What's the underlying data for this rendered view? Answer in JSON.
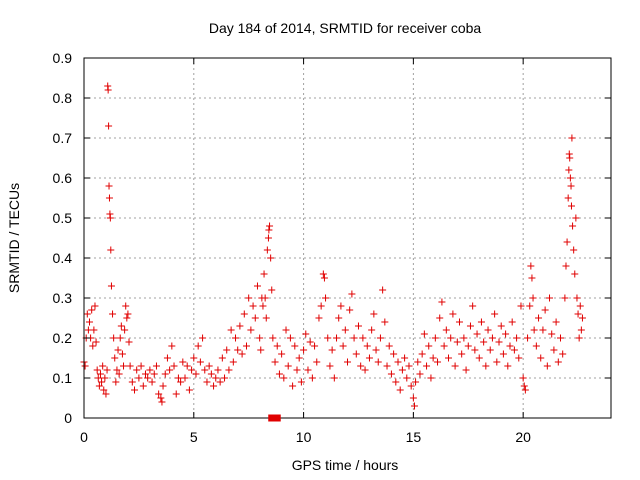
{
  "chart_data": {
    "type": "scatter",
    "title": "Day 184 of 2014, SRMTID for receiver coba",
    "xlabel": "GPS time / hours",
    "ylabel": "SRMTID / TECUs",
    "xlim": [
      0,
      24
    ],
    "ylim": [
      0,
      0.9
    ],
    "x_ticks": [
      0,
      5,
      10,
      15,
      20
    ],
    "x_tick_labels": [
      "0",
      "5",
      "10",
      "15",
      "20"
    ],
    "y_ticks": [
      0,
      0.1,
      0.2,
      0.3,
      0.4,
      0.5,
      0.6,
      0.7,
      0.8,
      0.9
    ],
    "y_tick_labels": [
      "0",
      "0.1",
      "0.2",
      "0.3",
      "0.4",
      "0.5",
      "0.6",
      "0.7",
      "0.8",
      "0.9"
    ],
    "grid": true,
    "marker": "plus",
    "color": "#e00000",
    "data_gap_marker": {
      "x": [
        8.55,
        8.8
      ],
      "y": 0
    },
    "series": [
      {
        "name": "SRMTID",
        "points": [
          [
            0.0,
            0.14
          ],
          [
            0.05,
            0.13
          ],
          [
            0.1,
            0.2
          ],
          [
            0.15,
            0.26
          ],
          [
            0.2,
            0.22
          ],
          [
            0.25,
            0.24
          ],
          [
            0.3,
            0.2
          ],
          [
            0.35,
            0.27
          ],
          [
            0.4,
            0.18
          ],
          [
            0.45,
            0.22
          ],
          [
            0.5,
            0.28
          ],
          [
            0.55,
            0.19
          ],
          [
            0.6,
            0.12
          ],
          [
            0.65,
            0.1
          ],
          [
            0.7,
            0.08
          ],
          [
            0.75,
            0.11
          ],
          [
            0.8,
            0.09
          ],
          [
            0.85,
            0.13
          ],
          [
            0.9,
            0.07
          ],
          [
            0.95,
            0.1
          ],
          [
            1.0,
            0.06
          ],
          [
            1.05,
            0.12
          ],
          [
            1.08,
            0.83
          ],
          [
            1.1,
            0.82
          ],
          [
            1.12,
            0.73
          ],
          [
            1.14,
            0.58
          ],
          [
            1.16,
            0.55
          ],
          [
            1.18,
            0.51
          ],
          [
            1.2,
            0.5
          ],
          [
            1.22,
            0.42
          ],
          [
            1.25,
            0.33
          ],
          [
            1.3,
            0.26
          ],
          [
            1.35,
            0.2
          ],
          [
            1.4,
            0.15
          ],
          [
            1.45,
            0.09
          ],
          [
            1.5,
            0.12
          ],
          [
            1.55,
            0.17
          ],
          [
            1.6,
            0.11
          ],
          [
            1.65,
            0.2
          ],
          [
            1.7,
            0.23
          ],
          [
            1.75,
            0.16
          ],
          [
            1.8,
            0.13
          ],
          [
            1.85,
            0.22
          ],
          [
            1.9,
            0.28
          ],
          [
            1.95,
            0.25
          ],
          [
            2.0,
            0.26
          ],
          [
            2.05,
            0.19
          ],
          [
            2.1,
            0.13
          ],
          [
            2.2,
            0.09
          ],
          [
            2.3,
            0.07
          ],
          [
            2.4,
            0.12
          ],
          [
            2.5,
            0.1
          ],
          [
            2.6,
            0.13
          ],
          [
            2.7,
            0.08
          ],
          [
            2.8,
            0.11
          ],
          [
            2.9,
            0.1
          ],
          [
            3.0,
            0.12
          ],
          [
            3.1,
            0.09
          ],
          [
            3.2,
            0.11
          ],
          [
            3.3,
            0.13
          ],
          [
            3.4,
            0.06
          ],
          [
            3.5,
            0.05
          ],
          [
            3.55,
            0.04
          ],
          [
            3.6,
            0.08
          ],
          [
            3.7,
            0.11
          ],
          [
            3.8,
            0.15
          ],
          [
            3.9,
            0.12
          ],
          [
            4.0,
            0.18
          ],
          [
            4.1,
            0.13
          ],
          [
            4.2,
            0.06
          ],
          [
            4.3,
            0.1
          ],
          [
            4.4,
            0.09
          ],
          [
            4.5,
            0.14
          ],
          [
            4.6,
            0.1
          ],
          [
            4.7,
            0.13
          ],
          [
            4.8,
            0.07
          ],
          [
            4.9,
            0.12
          ],
          [
            5.0,
            0.15
          ],
          [
            5.1,
            0.11
          ],
          [
            5.2,
            0.18
          ],
          [
            5.3,
            0.14
          ],
          [
            5.4,
            0.2
          ],
          [
            5.5,
            0.12
          ],
          [
            5.6,
            0.09
          ],
          [
            5.7,
            0.13
          ],
          [
            5.8,
            0.11
          ],
          [
            5.9,
            0.08
          ],
          [
            6.0,
            0.1
          ],
          [
            6.1,
            0.12
          ],
          [
            6.2,
            0.09
          ],
          [
            6.3,
            0.15
          ],
          [
            6.4,
            0.1
          ],
          [
            6.5,
            0.17
          ],
          [
            6.6,
            0.12
          ],
          [
            6.7,
            0.22
          ],
          [
            6.8,
            0.14
          ],
          [
            6.9,
            0.2
          ],
          [
            7.0,
            0.17
          ],
          [
            7.1,
            0.23
          ],
          [
            7.2,
            0.16
          ],
          [
            7.3,
            0.26
          ],
          [
            7.4,
            0.18
          ],
          [
            7.5,
            0.3
          ],
          [
            7.6,
            0.22
          ],
          [
            7.7,
            0.28
          ],
          [
            7.8,
            0.25
          ],
          [
            7.9,
            0.33
          ],
          [
            8.0,
            0.2
          ],
          [
            8.05,
            0.17
          ],
          [
            8.1,
            0.3
          ],
          [
            8.15,
            0.28
          ],
          [
            8.2,
            0.36
          ],
          [
            8.25,
            0.3
          ],
          [
            8.3,
            0.25
          ],
          [
            8.35,
            0.42
          ],
          [
            8.4,
            0.45
          ],
          [
            8.42,
            0.47
          ],
          [
            8.45,
            0.48
          ],
          [
            8.5,
            0.4
          ],
          [
            8.55,
            0.32
          ],
          [
            8.6,
            0.2
          ],
          [
            8.7,
            0.14
          ],
          [
            8.8,
            0.18
          ],
          [
            8.9,
            0.11
          ],
          [
            9.0,
            0.16
          ],
          [
            9.1,
            0.1
          ],
          [
            9.2,
            0.22
          ],
          [
            9.3,
            0.13
          ],
          [
            9.4,
            0.2
          ],
          [
            9.5,
            0.08
          ],
          [
            9.6,
            0.18
          ],
          [
            9.7,
            0.12
          ],
          [
            9.8,
            0.15
          ],
          [
            9.9,
            0.09
          ],
          [
            10.0,
            0.17
          ],
          [
            10.1,
            0.21
          ],
          [
            10.2,
            0.12
          ],
          [
            10.3,
            0.19
          ],
          [
            10.4,
            0.1
          ],
          [
            10.5,
            0.18
          ],
          [
            10.6,
            0.14
          ],
          [
            10.7,
            0.25
          ],
          [
            10.8,
            0.28
          ],
          [
            10.9,
            0.36
          ],
          [
            10.95,
            0.35
          ],
          [
            11.0,
            0.3
          ],
          [
            11.1,
            0.2
          ],
          [
            11.2,
            0.13
          ],
          [
            11.3,
            0.17
          ],
          [
            11.4,
            0.1
          ],
          [
            11.5,
            0.2
          ],
          [
            11.6,
            0.25
          ],
          [
            11.7,
            0.28
          ],
          [
            11.8,
            0.18
          ],
          [
            11.9,
            0.22
          ],
          [
            12.0,
            0.14
          ],
          [
            12.1,
            0.27
          ],
          [
            12.2,
            0.31
          ],
          [
            12.3,
            0.2
          ],
          [
            12.4,
            0.16
          ],
          [
            12.5,
            0.23
          ],
          [
            12.6,
            0.13
          ],
          [
            12.7,
            0.2
          ],
          [
            12.8,
            0.12
          ],
          [
            12.9,
            0.18
          ],
          [
            13.0,
            0.15
          ],
          [
            13.1,
            0.22
          ],
          [
            13.2,
            0.26
          ],
          [
            13.3,
            0.17
          ],
          [
            13.4,
            0.14
          ],
          [
            13.5,
            0.2
          ],
          [
            13.6,
            0.32
          ],
          [
            13.7,
            0.24
          ],
          [
            13.8,
            0.13
          ],
          [
            13.9,
            0.18
          ],
          [
            14.0,
            0.11
          ],
          [
            14.1,
            0.16
          ],
          [
            14.2,
            0.09
          ],
          [
            14.3,
            0.14
          ],
          [
            14.4,
            0.07
          ],
          [
            14.5,
            0.12
          ],
          [
            14.6,
            0.15
          ],
          [
            14.7,
            0.1
          ],
          [
            14.8,
            0.13
          ],
          [
            14.9,
            0.08
          ],
          [
            15.0,
            0.05
          ],
          [
            15.05,
            0.03
          ],
          [
            15.1,
            0.09
          ],
          [
            15.2,
            0.14
          ],
          [
            15.3,
            0.11
          ],
          [
            15.4,
            0.16
          ],
          [
            15.5,
            0.21
          ],
          [
            15.6,
            0.13
          ],
          [
            15.7,
            0.18
          ],
          [
            15.8,
            0.1
          ],
          [
            15.9,
            0.15
          ],
          [
            16.0,
            0.2
          ],
          [
            16.1,
            0.14
          ],
          [
            16.2,
            0.25
          ],
          [
            16.3,
            0.29
          ],
          [
            16.4,
            0.18
          ],
          [
            16.5,
            0.22
          ],
          [
            16.6,
            0.15
          ],
          [
            16.7,
            0.2
          ],
          [
            16.8,
            0.26
          ],
          [
            16.9,
            0.13
          ],
          [
            17.0,
            0.19
          ],
          [
            17.1,
            0.24
          ],
          [
            17.2,
            0.16
          ],
          [
            17.3,
            0.2
          ],
          [
            17.4,
            0.12
          ],
          [
            17.5,
            0.18
          ],
          [
            17.6,
            0.23
          ],
          [
            17.7,
            0.28
          ],
          [
            17.8,
            0.17
          ],
          [
            17.9,
            0.21
          ],
          [
            18.0,
            0.15
          ],
          [
            18.1,
            0.24
          ],
          [
            18.2,
            0.19
          ],
          [
            18.3,
            0.13
          ],
          [
            18.4,
            0.22
          ],
          [
            18.5,
            0.17
          ],
          [
            18.6,
            0.2
          ],
          [
            18.7,
            0.26
          ],
          [
            18.8,
            0.14
          ],
          [
            18.9,
            0.19
          ],
          [
            19.0,
            0.23
          ],
          [
            19.1,
            0.16
          ],
          [
            19.2,
            0.21
          ],
          [
            19.3,
            0.13
          ],
          [
            19.4,
            0.18
          ],
          [
            19.5,
            0.24
          ],
          [
            19.6,
            0.17
          ],
          [
            19.7,
            0.2
          ],
          [
            19.8,
            0.15
          ],
          [
            19.9,
            0.28
          ],
          [
            20.0,
            0.1
          ],
          [
            20.05,
            0.08
          ],
          [
            20.1,
            0.07
          ],
          [
            20.2,
            0.2
          ],
          [
            20.3,
            0.28
          ],
          [
            20.35,
            0.38
          ],
          [
            20.4,
            0.35
          ],
          [
            20.45,
            0.3
          ],
          [
            20.5,
            0.22
          ],
          [
            20.6,
            0.18
          ],
          [
            20.7,
            0.25
          ],
          [
            20.8,
            0.15
          ],
          [
            20.9,
            0.22
          ],
          [
            21.0,
            0.27
          ],
          [
            21.1,
            0.13
          ],
          [
            21.2,
            0.3
          ],
          [
            21.3,
            0.21
          ],
          [
            21.4,
            0.17
          ],
          [
            21.5,
            0.24
          ],
          [
            21.6,
            0.14
          ],
          [
            21.7,
            0.2
          ],
          [
            21.8,
            0.16
          ],
          [
            21.9,
            0.3
          ],
          [
            21.95,
            0.38
          ],
          [
            22.0,
            0.44
          ],
          [
            22.05,
            0.55
          ],
          [
            22.08,
            0.62
          ],
          [
            22.1,
            0.66
          ],
          [
            22.12,
            0.65
          ],
          [
            22.15,
            0.6
          ],
          [
            22.18,
            0.58
          ],
          [
            22.2,
            0.53
          ],
          [
            22.22,
            0.7
          ],
          [
            22.25,
            0.48
          ],
          [
            22.3,
            0.42
          ],
          [
            22.35,
            0.36
          ],
          [
            22.4,
            0.5
          ],
          [
            22.45,
            0.3
          ],
          [
            22.5,
            0.26
          ],
          [
            22.55,
            0.2
          ],
          [
            22.6,
            0.28
          ],
          [
            22.65,
            0.22
          ],
          [
            22.7,
            0.25
          ]
        ]
      }
    ]
  }
}
